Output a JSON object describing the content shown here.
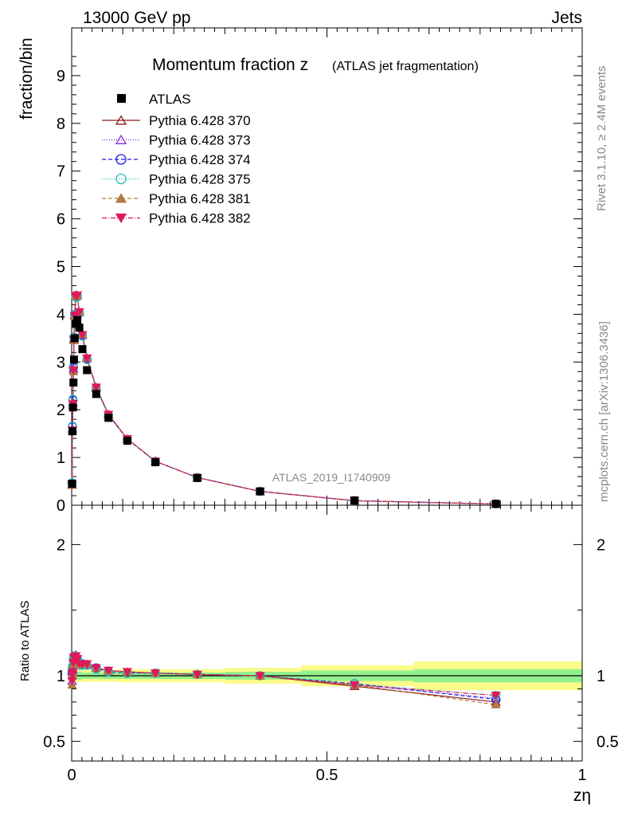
{
  "header": {
    "left": "13000 GeV pp",
    "right": "Jets"
  },
  "side_text": {
    "rivet": "Rivet 3.1.10, ≥ 2.4M events",
    "source": "mcplots.cern.ch [arXiv:1306.3436]"
  },
  "chart_data": [
    {
      "type": "scatter",
      "title_main": "Momentum fraction z",
      "title_sub": "(ATLAS jet fragmentation)",
      "ylabel": "fraction/bin",
      "analysis_label": "ATLAS_2019_I1740909",
      "xlim": [
        0,
        1
      ],
      "ylim": [
        0,
        10
      ],
      "yticks": [
        "0",
        "1",
        "2",
        "3",
        "4",
        "5",
        "6",
        "7",
        "8",
        "9"
      ],
      "legend_position": "top-left",
      "x": [
        0.0007,
        0.0015,
        0.0025,
        0.0035,
        0.0045,
        0.006,
        0.008,
        0.011,
        0.015,
        0.021,
        0.03,
        0.048,
        0.072,
        0.109,
        0.164,
        0.246,
        0.369,
        0.554,
        0.831
      ],
      "data": {
        "name": "ATLAS",
        "values": [
          0.45,
          1.55,
          2.05,
          2.57,
          3.05,
          3.5,
          3.8,
          3.88,
          3.72,
          3.27,
          2.83,
          2.33,
          1.83,
          1.35,
          0.9,
          0.57,
          0.29,
          0.1,
          0.03
        ]
      },
      "series": [
        {
          "name": "Pythia 6.428 370",
          "color": "#8b1a1a",
          "marker": "triangle-open",
          "dash": "",
          "values": [
            0.43,
            1.6,
            2.15,
            2.85,
            3.48,
            3.98,
            4.4,
            4.4,
            4.05,
            3.57,
            3.08,
            2.47,
            1.9,
            1.39,
            0.92,
            0.58,
            0.29,
            0.095,
            0.025
          ]
        },
        {
          "name": "Pythia 6.428 373",
          "color": "#8a2be2",
          "marker": "triangle-open",
          "dash": "1,2",
          "values": [
            0.43,
            1.6,
            2.15,
            2.86,
            3.5,
            4.0,
            4.41,
            4.4,
            4.04,
            3.56,
            3.07,
            2.46,
            1.9,
            1.39,
            0.92,
            0.58,
            0.29,
            0.094,
            0.025
          ]
        },
        {
          "name": "Pythia 6.428 374",
          "color": "#1a1ae6",
          "marker": "circle-open",
          "dash": "5,3",
          "values": [
            0.46,
            1.65,
            2.2,
            2.88,
            3.52,
            4.0,
            4.38,
            4.38,
            4.03,
            3.55,
            3.06,
            2.46,
            1.89,
            1.38,
            0.92,
            0.58,
            0.29,
            0.095,
            0.025
          ]
        },
        {
          "name": "Pythia 6.428 375",
          "color": "#20c0b0",
          "marker": "circle-open",
          "dash": "1,2",
          "values": [
            0.47,
            1.66,
            2.22,
            2.9,
            3.52,
            4.0,
            4.36,
            4.36,
            4.02,
            3.54,
            3.05,
            2.45,
            1.88,
            1.38,
            0.92,
            0.58,
            0.29,
            0.094,
            0.026
          ]
        },
        {
          "name": "Pythia 6.428 381",
          "color": "#b07a40",
          "marker": "triangle-filled",
          "dash": "5,3",
          "values": [
            0.42,
            1.55,
            2.1,
            2.8,
            3.45,
            3.96,
            4.38,
            4.4,
            4.05,
            3.58,
            3.09,
            2.48,
            1.91,
            1.39,
            0.92,
            0.58,
            0.29,
            0.093,
            0.024
          ]
        },
        {
          "name": "Pythia 6.428 382",
          "color": "#e0185a",
          "marker": "triangledown-filled",
          "dash": "6,2,1,2",
          "values": [
            0.43,
            1.57,
            2.12,
            2.83,
            3.47,
            3.98,
            4.38,
            4.4,
            4.05,
            3.57,
            3.08,
            2.47,
            1.9,
            1.39,
            0.92,
            0.58,
            0.29,
            0.094,
            0.025
          ]
        }
      ]
    },
    {
      "type": "line",
      "ylabel": "Ratio to ATLAS",
      "xlabel": "zη",
      "xlim": [
        0,
        1
      ],
      "ylim": [
        0.35,
        2.3
      ],
      "yticks": [
        "0.5",
        "1",
        "2"
      ],
      "xticks": [
        "0",
        "0.5",
        "1"
      ],
      "band_edges": [
        0,
        0.0015,
        0.006,
        0.02,
        0.04,
        0.09,
        0.2,
        0.3,
        0.45,
        0.67,
        1.0
      ],
      "band_inner": [
        0.03,
        0.03,
        0.03,
        0.025,
        0.025,
        0.025,
        0.025,
        0.03,
        0.04,
        0.05
      ],
      "band_outer": [
        0.05,
        0.05,
        0.05,
        0.045,
        0.045,
        0.05,
        0.05,
        0.06,
        0.08,
        0.11
      ],
      "x": [
        0.0007,
        0.0015,
        0.0025,
        0.0035,
        0.0045,
        0.006,
        0.008,
        0.011,
        0.015,
        0.021,
        0.03,
        0.048,
        0.072,
        0.109,
        0.164,
        0.246,
        0.369,
        0.554,
        0.831
      ],
      "series": [
        {
          "name": "Pythia 6.428 370",
          "values": [
            0.96,
            1.03,
            1.05,
            1.11,
            1.14,
            1.14,
            1.16,
            1.14,
            1.09,
            1.09,
            1.09,
            1.06,
            1.04,
            1.03,
            1.02,
            1.01,
            1.0,
            0.92,
            0.8
          ]
        },
        {
          "name": "Pythia 6.428 373",
          "values": [
            0.96,
            1.03,
            1.05,
            1.11,
            1.15,
            1.14,
            1.16,
            1.13,
            1.09,
            1.09,
            1.08,
            1.06,
            1.04,
            1.03,
            1.02,
            1.01,
            1.0,
            0.93,
            0.83
          ]
        },
        {
          "name": "Pythia 6.428 374",
          "values": [
            1.02,
            1.06,
            1.07,
            1.12,
            1.15,
            1.14,
            1.15,
            1.13,
            1.08,
            1.09,
            1.08,
            1.06,
            1.03,
            1.02,
            1.02,
            1.01,
            1.0,
            0.94,
            0.82
          ]
        },
        {
          "name": "Pythia 6.428 375",
          "values": [
            1.04,
            1.07,
            1.08,
            1.13,
            1.15,
            1.14,
            1.15,
            1.12,
            1.08,
            1.08,
            1.08,
            1.05,
            1.03,
            1.02,
            1.02,
            1.01,
            1.0,
            0.94,
            0.85
          ]
        },
        {
          "name": "Pythia 6.428 381",
          "values": [
            0.93,
            1.0,
            1.02,
            1.09,
            1.13,
            1.13,
            1.15,
            1.13,
            1.09,
            1.09,
            1.09,
            1.06,
            1.04,
            1.03,
            1.02,
            1.01,
            1.0,
            0.93,
            0.78
          ]
        },
        {
          "name": "Pythia 6.428 382",
          "values": [
            0.96,
            1.01,
            1.03,
            1.1,
            1.14,
            1.14,
            1.15,
            1.13,
            1.09,
            1.09,
            1.09,
            1.06,
            1.04,
            1.03,
            1.02,
            1.01,
            1.0,
            0.93,
            0.85
          ]
        }
      ]
    }
  ]
}
